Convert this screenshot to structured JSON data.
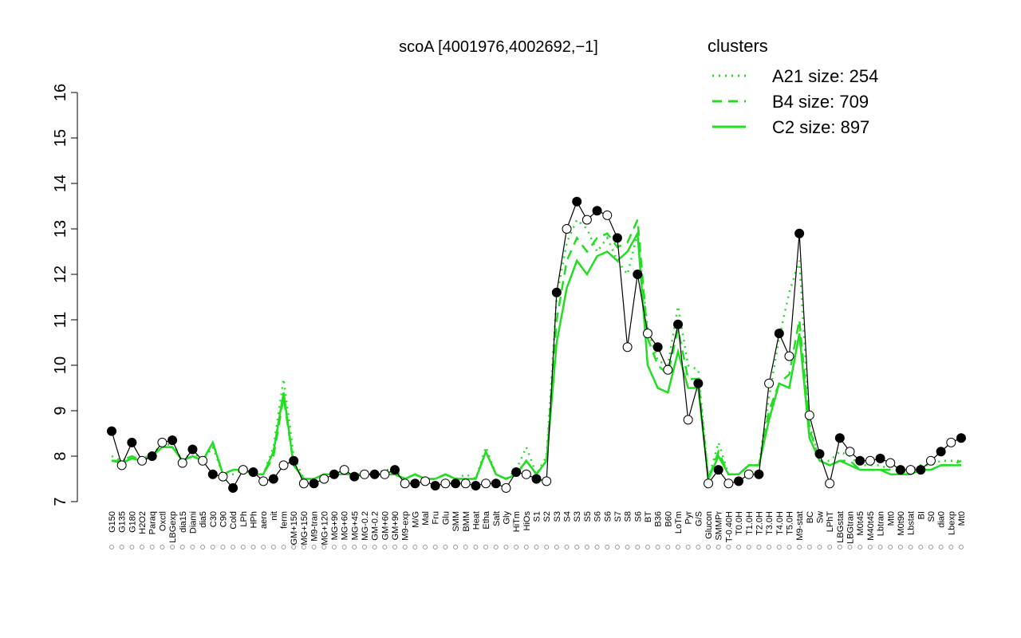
{
  "chart_data": {
    "type": "line",
    "title": "scoA [4001976,4002692,−1]",
    "legend_title": "clusters",
    "legend_color": "#22dd22",
    "ylim": [
      7,
      16
    ],
    "yticks": [
      7,
      8,
      9,
      10,
      11,
      12,
      13,
      14,
      15,
      16
    ],
    "categories": [
      "G150",
      "G135",
      "G180",
      "H2O2",
      "Paraq",
      "Oxctl",
      "LBGexp",
      "dia15",
      "Diami",
      "dia5",
      "C30",
      "C90",
      "Cold",
      "LPh",
      "HPh",
      "aero",
      "nit",
      "ferm",
      "GM+150",
      "MG+150",
      "M9-tran",
      "MG+120",
      "MG+90",
      "MG+60",
      "MG+45",
      "MG-0.2",
      "GM-0.2",
      "GM+60",
      "GM+90",
      "M9-exp",
      "M/G",
      "Mal",
      "Fru",
      "Glu",
      "SMM",
      "BMM",
      "Heat",
      "Etha",
      "Salt",
      "Gly",
      "HiTm",
      "HiOs",
      "S1",
      "S2",
      "S3",
      "S4",
      "S3",
      "S5",
      "S6",
      "S6",
      "S7",
      "S8",
      "S6",
      "BT",
      "B36",
      "B60",
      "LoTm",
      "Pyr",
      "G/S",
      "Glucon",
      "SMMPr",
      "T-0.40H",
      "T0.0H",
      "T1.0H",
      "T2.0H",
      "T3.0H",
      "T4.0H",
      "T5.0H",
      "M9-stat",
      "BC",
      "Sw",
      "LPhT",
      "LBGstat",
      "LBGtran",
      "M0t45",
      "M40t45",
      "Lbtran",
      "Mt0",
      "M0t90",
      "Lbstat",
      "BI",
      "S0",
      "dia0",
      "Lbexp",
      "Mt0"
    ],
    "points": {
      "color": "#000000",
      "values": [
        8.55,
        7.8,
        8.3,
        7.9,
        8.0,
        8.3,
        8.35,
        7.85,
        8.15,
        7.9,
        7.6,
        7.55,
        7.3,
        7.7,
        7.65,
        7.45,
        7.5,
        7.8,
        7.9,
        7.4,
        7.4,
        7.5,
        7.6,
        7.7,
        7.55,
        7.6,
        7.6,
        7.6,
        7.7,
        7.4,
        7.4,
        7.45,
        7.35,
        7.4,
        7.4,
        7.4,
        7.35,
        7.4,
        7.4,
        7.3,
        7.65,
        7.6,
        7.5,
        7.45,
        11.6,
        13.0,
        13.6,
        13.2,
        13.4,
        13.3,
        12.8,
        10.4,
        12.0,
        10.7,
        10.4,
        9.9,
        10.9,
        8.8,
        9.6,
        7.4,
        7.7,
        7.4,
        7.45,
        7.6,
        7.6,
        9.6,
        10.7,
        10.2,
        12.9,
        8.9,
        8.05,
        7.4,
        8.4,
        8.1,
        7.9,
        7.9,
        7.95,
        7.85,
        7.7,
        7.7,
        7.7,
        7.9,
        8.1,
        8.3,
        8.4
      ]
    },
    "series": [
      {
        "name": "A21 size: 254",
        "color": "#22dd22",
        "style": "dotted",
        "values": [
          8.0,
          7.9,
          8.0,
          7.9,
          8.1,
          8.2,
          8.3,
          7.9,
          8.1,
          7.9,
          8.2,
          7.6,
          7.6,
          7.7,
          7.6,
          7.6,
          8.2,
          9.7,
          8.0,
          7.5,
          7.5,
          7.6,
          7.6,
          7.6,
          7.6,
          7.6,
          7.6,
          7.7,
          7.7,
          7.5,
          7.6,
          7.5,
          7.5,
          7.6,
          7.5,
          7.6,
          7.5,
          8.2,
          7.6,
          7.5,
          7.7,
          8.2,
          7.6,
          8.0,
          11.5,
          12.7,
          13.2,
          13.0,
          12.5,
          12.8,
          12.3,
          12.0,
          12.9,
          10.8,
          10.1,
          10.0,
          11.3,
          10.0,
          9.9,
          7.5,
          8.3,
          7.6,
          7.6,
          7.8,
          7.8,
          9.3,
          10.6,
          11.6,
          12.3,
          8.7,
          7.9,
          7.9,
          8.1,
          8.0,
          7.8,
          7.8,
          7.8,
          7.7,
          7.7,
          7.7,
          7.8,
          7.8,
          7.9,
          7.9,
          7.9
        ]
      },
      {
        "name": "B4 size: 709",
        "color": "#22dd22",
        "style": "dashed",
        "values": [
          7.9,
          7.9,
          8.0,
          7.9,
          8.0,
          8.2,
          8.2,
          7.9,
          8.0,
          7.9,
          8.3,
          7.6,
          7.7,
          7.7,
          7.6,
          7.6,
          8.0,
          9.3,
          7.8,
          7.5,
          7.5,
          7.6,
          7.6,
          7.6,
          7.6,
          7.6,
          7.6,
          7.6,
          7.6,
          7.5,
          7.6,
          7.5,
          7.5,
          7.6,
          7.5,
          7.5,
          7.5,
          8.1,
          7.6,
          7.5,
          7.6,
          7.9,
          7.6,
          7.9,
          11.0,
          12.3,
          12.8,
          12.5,
          12.8,
          12.9,
          12.6,
          12.7,
          13.2,
          10.6,
          10.0,
          9.8,
          10.8,
          9.7,
          9.7,
          7.5,
          8.1,
          7.6,
          7.6,
          7.8,
          7.8,
          9.0,
          9.6,
          9.8,
          11.0,
          8.6,
          7.9,
          7.8,
          7.9,
          7.9,
          7.7,
          7.7,
          7.7,
          7.7,
          7.7,
          7.6,
          7.7,
          7.7,
          7.8,
          7.8,
          7.9
        ]
      },
      {
        "name": "C2 size: 897",
        "color": "#22dd22",
        "style": "solid",
        "values": [
          7.9,
          7.85,
          7.95,
          7.9,
          8.0,
          8.2,
          8.2,
          7.9,
          8.0,
          7.9,
          8.3,
          7.6,
          7.7,
          7.7,
          7.6,
          7.6,
          8.1,
          9.4,
          7.8,
          7.5,
          7.5,
          7.6,
          7.6,
          7.6,
          7.6,
          7.6,
          7.6,
          7.6,
          7.6,
          7.5,
          7.6,
          7.5,
          7.5,
          7.6,
          7.5,
          7.5,
          7.5,
          8.1,
          7.6,
          7.5,
          7.6,
          7.9,
          7.6,
          7.9,
          10.5,
          11.7,
          12.3,
          12.0,
          12.4,
          12.5,
          12.3,
          12.5,
          12.9,
          10.0,
          9.5,
          9.4,
          10.3,
          9.5,
          9.5,
          7.5,
          8.0,
          7.6,
          7.6,
          7.8,
          7.8,
          8.8,
          9.6,
          9.5,
          10.7,
          8.4,
          7.9,
          7.8,
          7.9,
          7.8,
          7.7,
          7.7,
          7.7,
          7.6,
          7.6,
          7.6,
          7.7,
          7.7,
          7.8,
          7.8,
          7.8
        ]
      }
    ]
  }
}
